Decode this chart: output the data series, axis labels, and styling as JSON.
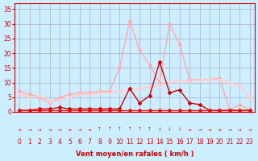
{
  "x": [
    0,
    1,
    2,
    3,
    4,
    5,
    6,
    7,
    8,
    9,
    10,
    11,
    12,
    13,
    14,
    15,
    16,
    17,
    18,
    19,
    20,
    21,
    22,
    23
  ],
  "series": [
    {
      "name": "rafales_light",
      "color": "#ffaaaa",
      "y": [
        7,
        6,
        5,
        3,
        5,
        6,
        6.5,
        6.5,
        7,
        7,
        15,
        31,
        21,
        16,
        10,
        30,
        23,
        11,
        11,
        11,
        11.5,
        0.5,
        2.5,
        0.5
      ],
      "marker": "D",
      "markersize": 2,
      "linewidth": 1.0
    },
    {
      "name": "moyen_light",
      "color": "#ffcccc",
      "y": [
        6,
        5,
        5.5,
        3.5,
        4,
        5,
        6,
        6,
        6.5,
        6.5,
        7,
        7.5,
        8,
        8.5,
        9,
        10,
        10.5,
        10.5,
        11,
        11,
        11,
        10,
        9,
        5
      ],
      "marker": "D",
      "markersize": 2,
      "linewidth": 1.2
    },
    {
      "name": "dark_series",
      "color": "#cc0000",
      "y": [
        0.5,
        0.5,
        1,
        1,
        1.5,
        1,
        1,
        1,
        1,
        1,
        1,
        8,
        3,
        5.5,
        17,
        6.5,
        7.5,
        3,
        2.5,
        0.5,
        0.5,
        0.5,
        0.5,
        0.5
      ],
      "marker": "D",
      "markersize": 2,
      "linewidth": 1.0
    },
    {
      "name": "base_red",
      "color": "#ff0000",
      "y": [
        0.5,
        0.5,
        0.5,
        0.5,
        0.5,
        0.5,
        0.5,
        0.5,
        0.5,
        0.5,
        0.5,
        0.5,
        0.5,
        0.5,
        0.5,
        0.5,
        0.5,
        0.5,
        0.5,
        0.5,
        0.5,
        0.5,
        0.5,
        0.5
      ],
      "marker": "D",
      "markersize": 2,
      "linewidth": 1.0
    }
  ],
  "arrow_row": [
    "→",
    "→",
    "→",
    "→",
    "→",
    "→",
    "→",
    "→",
    "↑",
    "↑",
    "↑",
    "↑",
    "↑",
    "↑",
    "↓",
    "↓",
    "↓",
    "→",
    "→",
    "→",
    "→",
    "→",
    "→",
    "→"
  ],
  "xlabel": "Vent moyen/en rafales ( km/h )",
  "ylim": [
    0,
    37
  ],
  "xlim": [
    -0.5,
    23.5
  ],
  "yticks": [
    0,
    5,
    10,
    15,
    20,
    25,
    30,
    35
  ],
  "xticks": [
    0,
    1,
    2,
    3,
    4,
    5,
    6,
    7,
    8,
    9,
    10,
    11,
    12,
    13,
    14,
    15,
    16,
    17,
    18,
    19,
    20,
    21,
    22,
    23
  ],
  "bg_color": "#cceeff",
  "grid_color": "#aaaacc",
  "tick_color": "#cc0000",
  "label_color": "#cc0000"
}
